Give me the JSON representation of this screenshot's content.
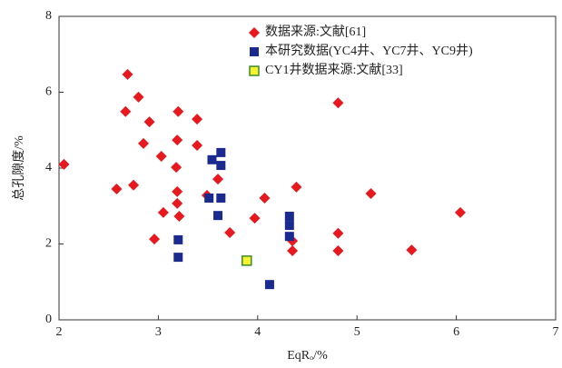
{
  "chart_data": {
    "type": "scatter",
    "xlabel": "EqRₒ/%",
    "ylabel": "总孔隙度/%",
    "xlim": [
      2,
      7
    ],
    "xticks": [
      2,
      3,
      4,
      5,
      6,
      7
    ],
    "ylim": [
      0,
      8
    ],
    "yticks": [
      0,
      2,
      4,
      6,
      8
    ],
    "legend": "top-right",
    "series": [
      {
        "name": "数据来源:文献[61]",
        "color": "#e8191e",
        "marker": "diamond",
        "x": [
          2.05,
          2.69,
          2.8,
          2.67,
          2.91,
          3.2,
          3.39,
          2.85,
          3.03,
          3.19,
          3.39,
          3.18,
          2.58,
          2.75,
          3.19,
          3.19,
          3.49,
          3.6,
          3.05,
          3.21,
          2.96,
          3.72,
          3.97,
          4.07,
          4.39,
          4.35,
          4.35,
          4.81,
          4.81,
          4.81,
          5.14,
          5.55,
          6.04
        ],
        "values": [
          4.1,
          6.47,
          5.87,
          5.49,
          5.22,
          5.49,
          5.29,
          4.65,
          4.31,
          4.74,
          4.6,
          4.02,
          3.45,
          3.55,
          3.38,
          3.07,
          3.28,
          3.71,
          2.83,
          2.73,
          2.13,
          2.3,
          2.68,
          3.21,
          3.5,
          2.08,
          1.82,
          5.72,
          2.28,
          1.82,
          3.33,
          1.84,
          2.83
        ]
      },
      {
        "name": "本研究数据(YC4井、YC7井、YC9井)",
        "color": "#1b2a8f",
        "marker": "square",
        "x": [
          3.63,
          3.63,
          3.54,
          3.63,
          3.51,
          3.6,
          3.2,
          3.2,
          4.32,
          4.32,
          4.32,
          4.12
        ],
        "values": [
          4.41,
          4.07,
          4.22,
          3.21,
          3.21,
          2.75,
          2.11,
          1.65,
          2.73,
          2.49,
          2.2,
          0.93
        ]
      },
      {
        "name": "CY1井数据来源:文献[33]",
        "color": "#f5f232",
        "marker": "square",
        "x": [
          3.89
        ],
        "values": [
          1.56
        ]
      }
    ]
  }
}
